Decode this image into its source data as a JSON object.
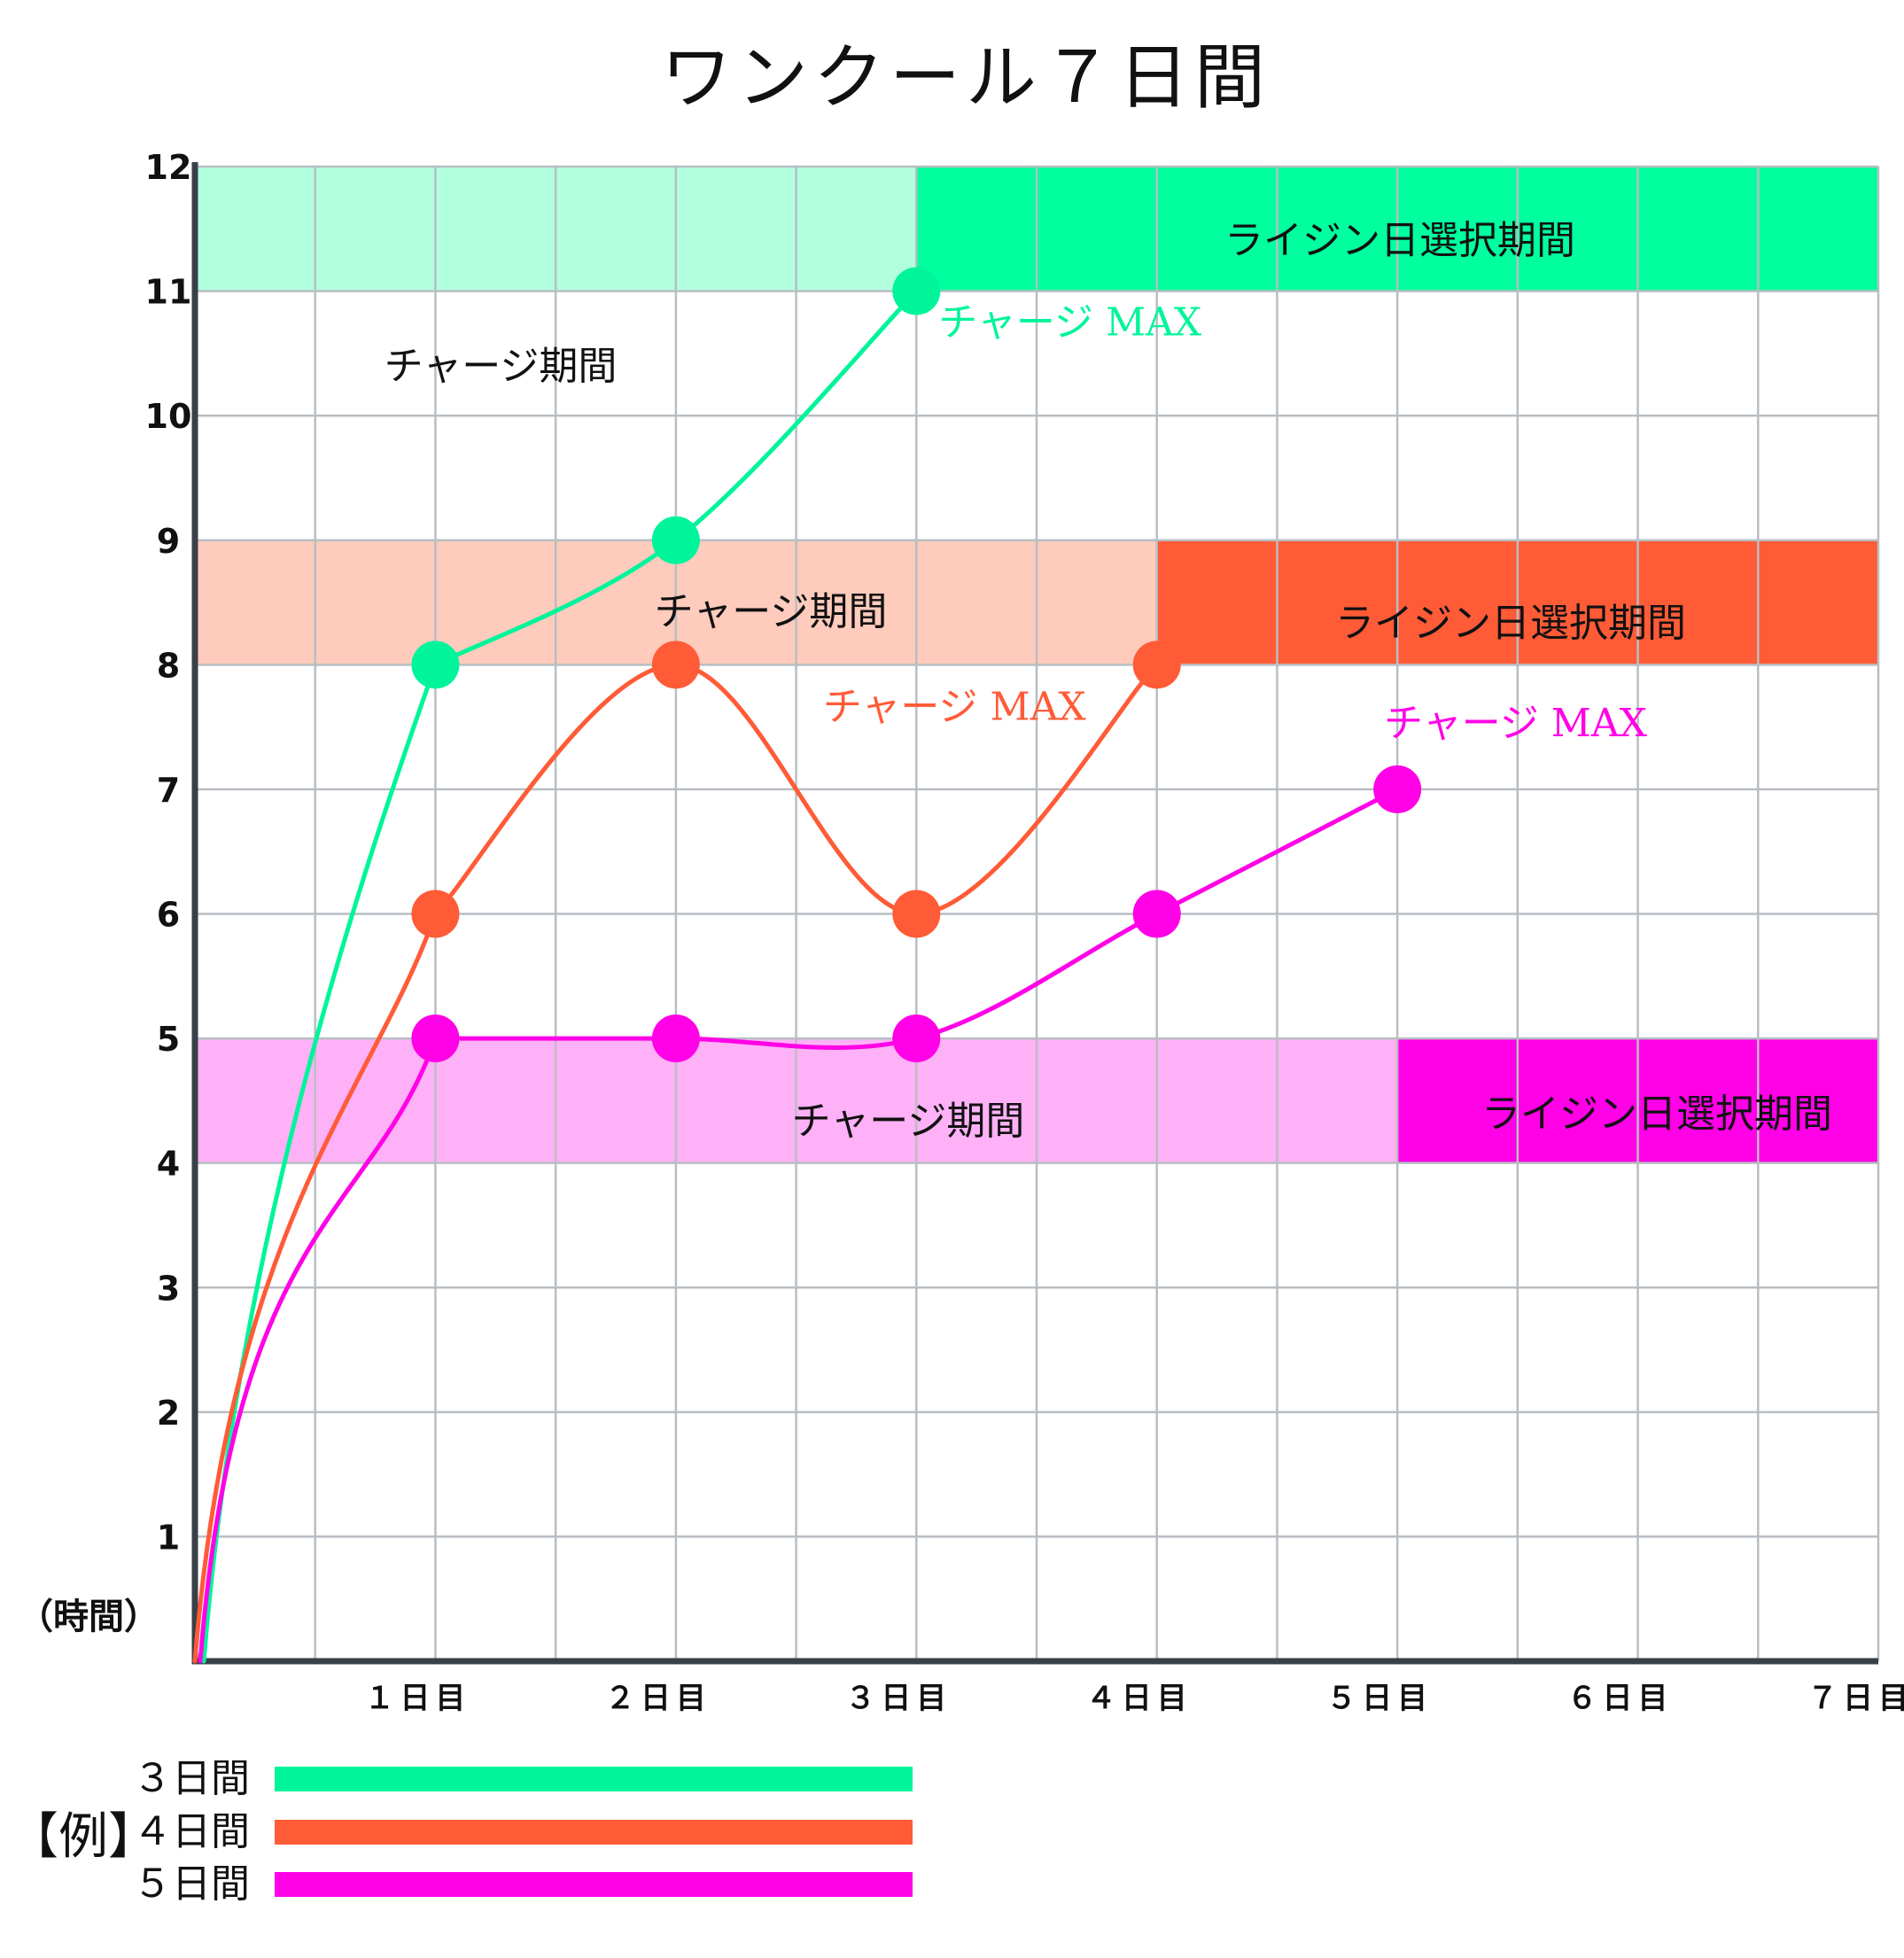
{
  "chart_data": {
    "type": "line",
    "title": "ワンクール７日間",
    "ylabel": "（時間）",
    "ylim": [
      0,
      12
    ],
    "xlim": [
      0,
      7
    ],
    "y_ticks": [
      "1",
      "2",
      "3",
      "4",
      "5",
      "6",
      "7",
      "8",
      "9",
      "10",
      "11",
      "12"
    ],
    "x_ticks": [
      "１日目",
      "２日目",
      "３日目",
      "４日目",
      "５日目",
      "６日目",
      "７日目"
    ],
    "grid": true,
    "bands": [
      {
        "y": [
          11,
          12
        ],
        "charge_x": [
          0,
          3
        ],
        "rising_x": [
          3,
          7
        ],
        "charge_color": "#b2ffe0",
        "rising_color": "#00ff9f",
        "charge_label": "チャージ期間",
        "rising_label": "ライジン日選択期間"
      },
      {
        "y": [
          8,
          9
        ],
        "charge_x": [
          0,
          4
        ],
        "rising_x": [
          4,
          7
        ],
        "charge_color": "#ffcbbc",
        "rising_color": "#ff5b37",
        "charge_label": "チャージ期間",
        "rising_label": "ライジン日選択期間"
      },
      {
        "y": [
          4,
          5
        ],
        "charge_x": [
          0,
          5
        ],
        "rising_x": [
          5,
          7
        ],
        "charge_color": "#ffb1f7",
        "rising_color": "#ff00e7",
        "charge_label": "チャージ期間",
        "rising_label": "ライジン日選択期間"
      }
    ],
    "series": [
      {
        "name": "３日間",
        "color": "#00f59a",
        "x": [
          1,
          2,
          3
        ],
        "values": [
          8,
          9,
          11
        ],
        "max_label": "チャージ MAX"
      },
      {
        "name": "４日間",
        "color": "#ff5b37",
        "x": [
          1,
          2,
          3,
          4
        ],
        "values": [
          6,
          8,
          6,
          8
        ],
        "max_label": "チャージ MAX"
      },
      {
        "name": "５日間",
        "color": "#ff00e7",
        "x": [
          1,
          2,
          3,
          4,
          5
        ],
        "values": [
          5,
          5,
          5,
          6,
          7
        ],
        "max_label": "チャージ MAX"
      }
    ],
    "legend": {
      "title": "【例】",
      "placement": "bottom-left"
    }
  }
}
